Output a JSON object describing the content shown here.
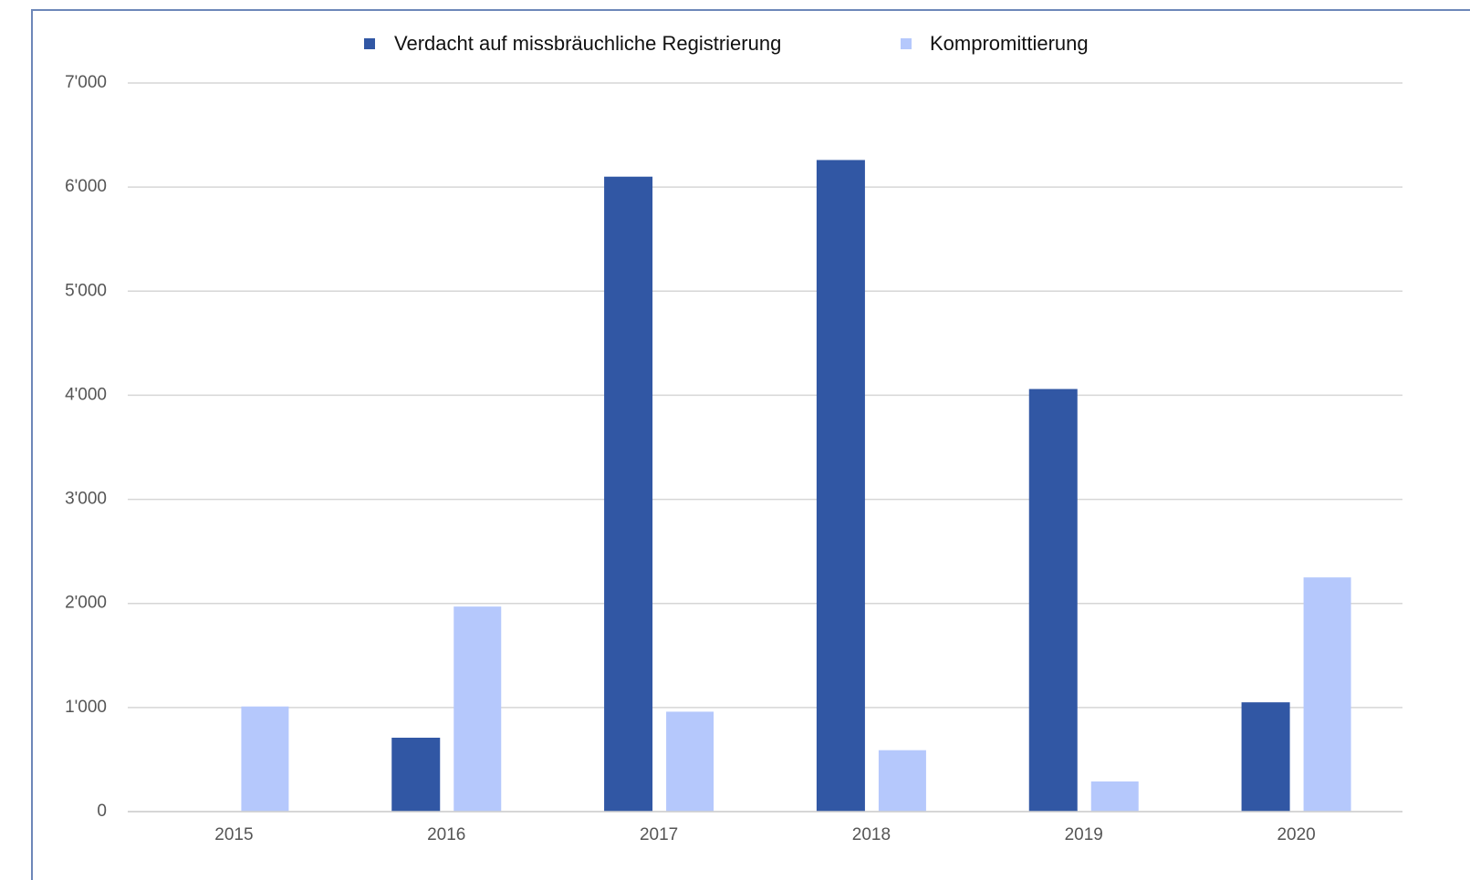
{
  "chart_data": {
    "type": "bar",
    "categories": [
      "2015",
      "2016",
      "2017",
      "2018",
      "2019",
      "2020"
    ],
    "series": [
      {
        "name": "Verdacht auf missbräuchliche Registrierung",
        "color": "#3157a4",
        "values": [
          0,
          710,
          6100,
          6260,
          4060,
          1050
        ]
      },
      {
        "name": "Kompromittierung",
        "color": "#b5c8fc",
        "values": [
          1010,
          1970,
          960,
          590,
          290,
          2250
        ]
      }
    ],
    "ylim": [
      0,
      7000
    ],
    "yticks": [
      0,
      {
        "value": 1000,
        "label": "1'000"
      },
      {
        "value": 2000,
        "label": "2'000"
      },
      {
        "value": 3000,
        "label": "3'000"
      },
      {
        "value": 4000,
        "label": "4'000"
      },
      {
        "value": 5000,
        "label": "5'000"
      },
      {
        "value": 6000,
        "label": "6'000"
      },
      {
        "value": 7000,
        "label": "7'000"
      }
    ],
    "grid": true,
    "legend": "top"
  }
}
